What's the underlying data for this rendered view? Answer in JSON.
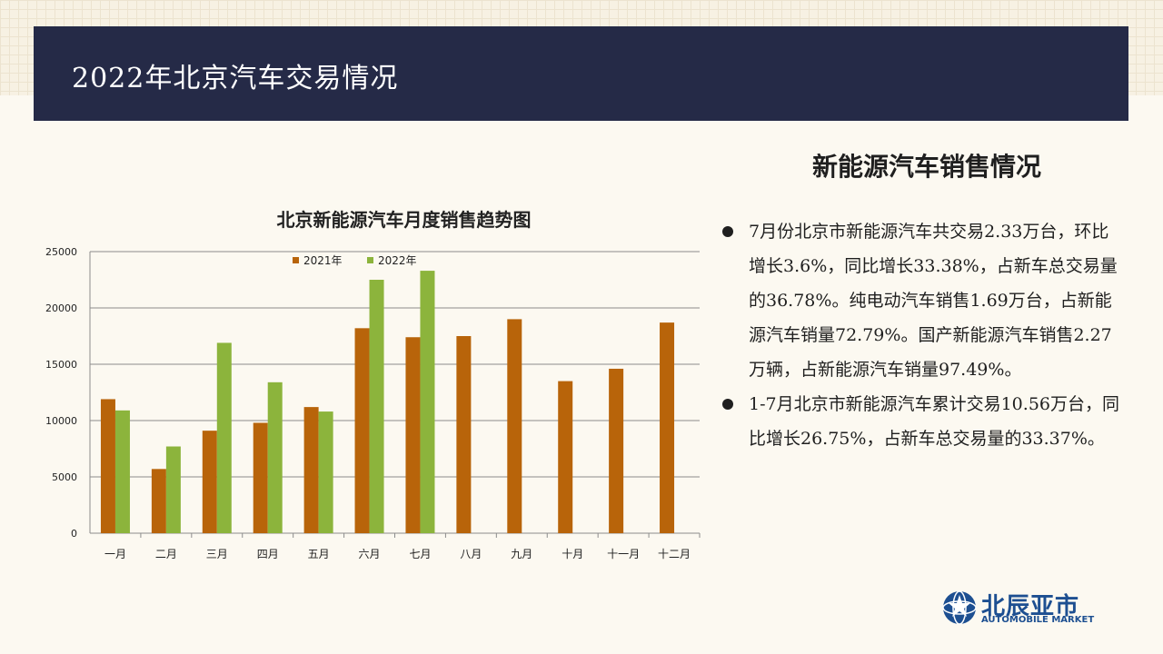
{
  "header": {
    "title": "2022年北京汽车交易情况"
  },
  "right_panel": {
    "title": "新能源汽车销售情况",
    "bullets": [
      "7月份北京市新能源汽车共交易2.33万台，环比增长3.6%，同比增长33.38%，占新车总交易量的36.78%。纯电动汽车销售1.69万台，占新能源汽车销量72.79%。国产新能源汽车销售2.27万辆，占新能源汽车销量97.49%。",
      "1-7月北京市新能源汽车累计交易10.56万台，同比增长26.75%，占新车总交易量的33.37%。"
    ]
  },
  "logo": {
    "name_cn": "北辰亚市",
    "name_en": "AUTOMOBILE MARKET",
    "icon": "globe-star-icon"
  },
  "chart_data": {
    "type": "bar",
    "title": "北京新能源汽车月度销售趋势图",
    "categories": [
      "一月",
      "二月",
      "三月",
      "四月",
      "五月",
      "六月",
      "七月",
      "八月",
      "九月",
      "十月",
      "十一月",
      "十二月"
    ],
    "series": [
      {
        "name": "2021年",
        "color": "#b8640a",
        "values": [
          11900,
          5700,
          9100,
          9800,
          11200,
          18200,
          17400,
          17500,
          19000,
          13500,
          14600,
          18700
        ]
      },
      {
        "name": "2022年",
        "color": "#8cb43c",
        "values": [
          10900,
          7700,
          16900,
          13400,
          10800,
          22500,
          23300,
          null,
          null,
          null,
          null,
          null
        ]
      }
    ],
    "yticks": [
      0,
      5000,
      10000,
      15000,
      20000,
      25000
    ],
    "ylim": [
      0,
      25000
    ],
    "grid": true,
    "legend": "top-center"
  }
}
